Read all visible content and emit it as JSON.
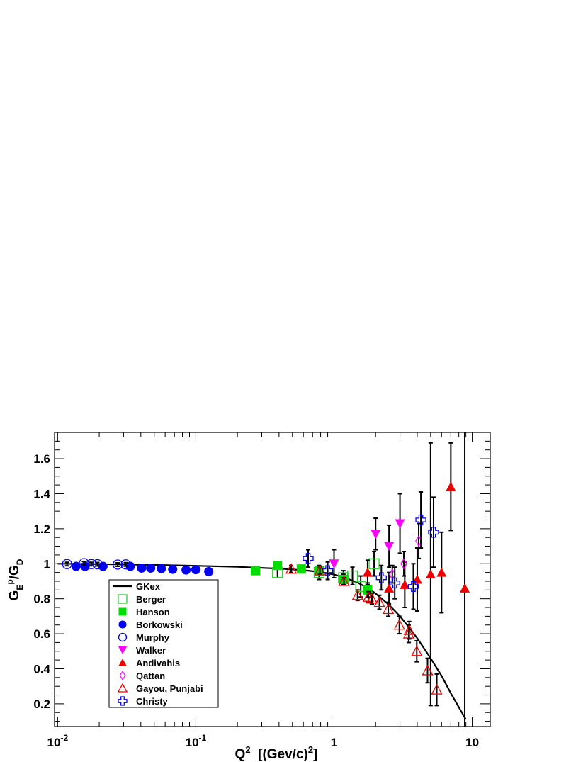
{
  "chart_data": {
    "type": "scatter",
    "title": "",
    "xlabel": "Q2 [(Gev/c)2]",
    "ylabel": "GEp/GD",
    "xscale": "log",
    "xlim": [
      0.0095,
      13.5
    ],
    "ylim": [
      0.07,
      1.75
    ],
    "x_ticks": [
      0.01,
      0.1,
      1,
      10
    ],
    "x_tick_labels": [
      {
        "base": "10",
        "exp": "-2"
      },
      {
        "base": "10",
        "exp": "-1"
      },
      {
        "base": "1",
        "exp": ""
      },
      {
        "base": "10",
        "exp": ""
      }
    ],
    "y_ticks": [
      0.2,
      0.4,
      0.6,
      0.8,
      1.0,
      1.2,
      1.4,
      1.6
    ],
    "y_tick_labels": [
      "0.2",
      "0.4",
      "0.6",
      "0.8",
      "1",
      "1.2",
      "1.4",
      "1.6"
    ],
    "grid": false,
    "legend_position": "bottom-left",
    "curve": {
      "name": "GKex",
      "color": "#000000",
      "x": [
        0.01,
        0.02,
        0.05,
        0.1,
        0.2,
        0.4,
        0.6,
        0.8,
        1.0,
        1.2,
        1.5,
        1.8,
        2.0,
        2.5,
        3.0,
        3.5,
        4.0,
        5.0,
        6.0,
        7.0,
        8.0,
        9.0
      ],
      "y": [
        1.0,
        0.998,
        0.993,
        0.988,
        0.982,
        0.972,
        0.963,
        0.952,
        0.938,
        0.92,
        0.89,
        0.855,
        0.83,
        0.765,
        0.7,
        0.635,
        0.575,
        0.46,
        0.36,
        0.26,
        0.18,
        0.11
      ]
    },
    "series": [
      {
        "name": "Berger",
        "marker": "open-square",
        "color": "#33cc33",
        "x": [
          0.39,
          0.78,
          1.17,
          1.36,
          1.56,
          1.95
        ],
        "y": [
          0.95,
          0.95,
          0.92,
          0.93,
          0.87,
          1.0
        ],
        "err": [
          0.03,
          0.04,
          0.04,
          0.05,
          0.06,
          0.07
        ]
      },
      {
        "name": "Hanson",
        "marker": "filled-square",
        "color": "#00dd00",
        "x": [
          0.27,
          0.39,
          0.58,
          0.78,
          1.17,
          1.75
        ],
        "y": [
          0.96,
          0.99,
          0.97,
          0.96,
          0.91,
          0.85
        ],
        "err": [
          0.01,
          0.02,
          0.02,
          0.02,
          0.03,
          0.04
        ]
      },
      {
        "name": "Borkowski",
        "marker": "filled-circle",
        "color": "#0000ee",
        "x": [
          0.0136,
          0.0158,
          0.0213,
          0.0336,
          0.0405,
          0.0471,
          0.0563,
          0.068,
          0.085,
          0.1,
          0.124
        ],
        "y": [
          0.985,
          0.985,
          0.985,
          0.985,
          0.975,
          0.975,
          0.972,
          0.968,
          0.964,
          0.966,
          0.955
        ],
        "err": [
          0.01,
          0.01,
          0.01,
          0.01,
          0.01,
          0.01,
          0.01,
          0.01,
          0.01,
          0.01,
          0.01
        ]
      },
      {
        "name": "Murphy",
        "marker": "open-circle",
        "color": "#0000ee",
        "x": [
          0.0117,
          0.0155,
          0.0175,
          0.0194,
          0.0272,
          0.0311
        ],
        "y": [
          0.998,
          1.003,
          0.998,
          0.997,
          0.995,
          0.996
        ],
        "err": [
          0.01,
          0.01,
          0.01,
          0.01,
          0.01,
          0.01
        ]
      },
      {
        "name": "Walker",
        "marker": "filled-down-triangle",
        "color": "#ff00ff",
        "x": [
          1.0,
          2.0,
          2.5,
          3.0
        ],
        "y": [
          1.0,
          1.17,
          1.1,
          1.23
        ],
        "err": [
          0.08,
          0.09,
          0.12,
          0.17
        ]
      },
      {
        "name": "Andivahis",
        "marker": "filled-triangle",
        "color": "#ee0000",
        "x": [
          1.75,
          2.5,
          3.25,
          4.0,
          5.0,
          6.0,
          7.0,
          8.83
        ],
        "y": [
          0.95,
          0.86,
          0.88,
          0.91,
          0.94,
          0.95,
          1.44,
          0.86
        ],
        "err": [
          0.07,
          0.09,
          0.13,
          0.18,
          0.75,
          0.23,
          0.25,
          1.0
        ]
      },
      {
        "name": "Qattan",
        "marker": "open-diamond",
        "color": "#ff00ff",
        "x": [
          2.64,
          3.2,
          4.1
        ],
        "y": [
          0.94,
          1.0,
          1.13
        ],
        "err": [
          0.05,
          0.07,
          0.1
        ]
      },
      {
        "name": "Gayou, Punjabi",
        "marker": "open-triangle",
        "color": "#ee0000",
        "x": [
          0.49,
          0.79,
          1.18,
          1.48,
          1.77,
          1.88,
          2.13,
          2.47,
          2.97,
          3.47,
          3.5,
          3.97,
          4.75,
          5.54
        ],
        "y": [
          0.97,
          0.96,
          0.9,
          0.82,
          0.81,
          0.8,
          0.78,
          0.74,
          0.65,
          0.6,
          0.62,
          0.5,
          0.39,
          0.28
        ],
        "err": [
          0.02,
          0.02,
          0.02,
          0.03,
          0.03,
          0.03,
          0.04,
          0.04,
          0.05,
          0.05,
          0.05,
          0.06,
          0.07,
          0.09
        ]
      },
      {
        "name": "Christy",
        "marker": "open-cross",
        "color": "#0000ee",
        "x": [
          0.65,
          0.9,
          2.2,
          2.75,
          3.75,
          4.25,
          5.25
        ],
        "y": [
          1.03,
          0.96,
          0.92,
          0.89,
          0.87,
          1.25,
          1.18
        ],
        "err": [
          0.05,
          0.05,
          0.07,
          0.09,
          0.13,
          0.16,
          0.2
        ]
      }
    ],
    "legend": [
      {
        "label": "GKex",
        "marker": "line",
        "color": "#000000"
      },
      {
        "label": "Berger",
        "marker": "open-square",
        "color": "#33cc33"
      },
      {
        "label": "Hanson",
        "marker": "filled-square",
        "color": "#00dd00"
      },
      {
        "label": "Borkowski",
        "marker": "filled-circle",
        "color": "#0000ee"
      },
      {
        "label": "Murphy",
        "marker": "open-circle",
        "color": "#0000ee"
      },
      {
        "label": "Walker",
        "marker": "filled-down-triangle",
        "color": "#ff00ff"
      },
      {
        "label": "Andivahis",
        "marker": "filled-triangle",
        "color": "#ee0000"
      },
      {
        "label": "Qattan",
        "marker": "open-diamond",
        "color": "#ff00ff"
      },
      {
        "label": "Gayou, Punjabi",
        "marker": "open-triangle",
        "color": "#ee0000"
      },
      {
        "label": "Christy",
        "marker": "open-cross",
        "color": "#0000ee"
      }
    ]
  }
}
